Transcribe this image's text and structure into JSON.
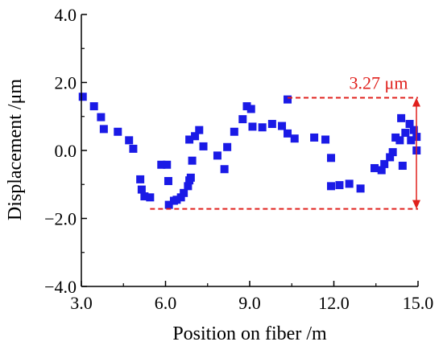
{
  "chart_data": {
    "type": "scatter",
    "xlabel": "Position on fiber /m",
    "ylabel": "Displacement /μm",
    "xlim": [
      3.0,
      15.0
    ],
    "ylim": [
      -4.0,
      4.0
    ],
    "x_ticks": [
      "3.0",
      "6.0",
      "9.0",
      "12.0",
      "15.0"
    ],
    "y_ticks": [
      "−4.0",
      "−2.0",
      "0.0",
      "2.0",
      "4.0"
    ],
    "grid": false,
    "series": [
      {
        "color": "#1a1ae6",
        "marker": "square",
        "points": [
          [
            3.05,
            1.58
          ],
          [
            3.45,
            1.3
          ],
          [
            3.7,
            0.98
          ],
          [
            3.8,
            0.63
          ],
          [
            4.3,
            0.55
          ],
          [
            4.7,
            0.3
          ],
          [
            4.85,
            0.05
          ],
          [
            5.1,
            -0.85
          ],
          [
            5.15,
            -1.15
          ],
          [
            5.25,
            -1.35
          ],
          [
            5.45,
            -1.38
          ],
          [
            5.85,
            -0.42
          ],
          [
            6.05,
            -0.42
          ],
          [
            6.1,
            -0.9
          ],
          [
            6.12,
            -1.6
          ],
          [
            6.3,
            -1.48
          ],
          [
            6.4,
            -1.45
          ],
          [
            6.55,
            -1.38
          ],
          [
            6.65,
            -1.25
          ],
          [
            6.8,
            -1.05
          ],
          [
            6.85,
            -0.88
          ],
          [
            6.9,
            -0.8
          ],
          [
            6.85,
            0.32
          ],
          [
            6.95,
            -0.3
          ],
          [
            7.05,
            0.42
          ],
          [
            7.2,
            0.6
          ],
          [
            7.35,
            0.12
          ],
          [
            7.85,
            -0.15
          ],
          [
            8.1,
            -0.55
          ],
          [
            8.2,
            0.1
          ],
          [
            8.45,
            0.55
          ],
          [
            8.75,
            0.92
          ],
          [
            8.9,
            1.3
          ],
          [
            9.05,
            1.22
          ],
          [
            9.1,
            0.7
          ],
          [
            9.45,
            0.68
          ],
          [
            9.8,
            0.78
          ],
          [
            10.15,
            0.72
          ],
          [
            10.35,
            0.5
          ],
          [
            10.35,
            1.5
          ],
          [
            10.6,
            0.35
          ],
          [
            11.3,
            0.38
          ],
          [
            11.7,
            0.32
          ],
          [
            11.9,
            -0.22
          ],
          [
            11.9,
            -1.05
          ],
          [
            12.2,
            -1.02
          ],
          [
            12.55,
            -0.98
          ],
          [
            12.95,
            -1.12
          ],
          [
            13.45,
            -0.52
          ],
          [
            13.7,
            -0.58
          ],
          [
            13.8,
            -0.4
          ],
          [
            14.0,
            -0.2
          ],
          [
            14.1,
            -0.05
          ],
          [
            14.2,
            0.38
          ],
          [
            14.35,
            0.3
          ],
          [
            14.4,
            0.95
          ],
          [
            14.45,
            -0.45
          ],
          [
            14.55,
            0.52
          ],
          [
            14.7,
            0.78
          ],
          [
            14.75,
            0.3
          ],
          [
            14.85,
            0.6
          ],
          [
            14.95,
            0.4
          ],
          [
            14.95,
            0.0
          ]
        ]
      }
    ],
    "annotation": {
      "label": "3.27 μm",
      "color": "#e0201c",
      "upper_line": {
        "x_from": 10.35,
        "x_to": 15.0,
        "y": 1.55
      },
      "lower_line": {
        "x_from": 5.45,
        "x_to": 15.0,
        "y": -1.72
      }
    }
  }
}
